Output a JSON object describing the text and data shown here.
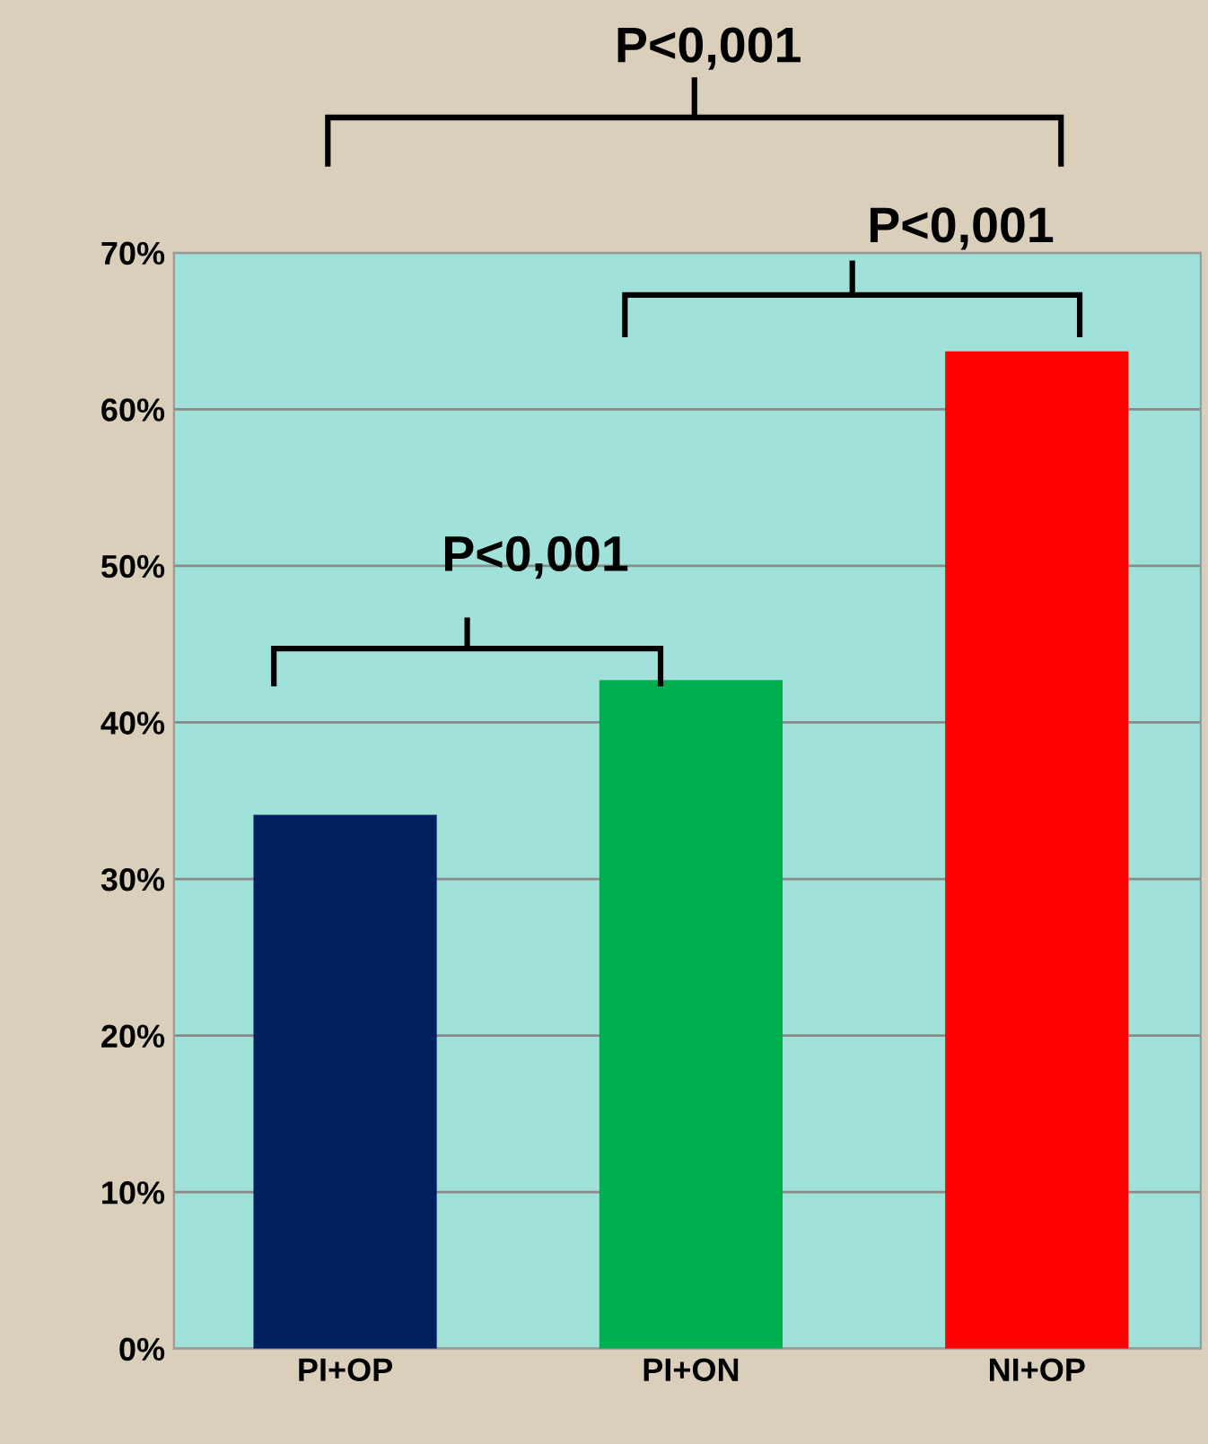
{
  "chart_data": {
    "type": "bar",
    "categories": [
      "PI+OP",
      "PI+ON",
      "NI+OP"
    ],
    "values": [
      34.1,
      42.7,
      63.7
    ],
    "colors": [
      "#002060",
      "#00b050",
      "#ff0000"
    ],
    "ylim": [
      0,
      70
    ],
    "yticks": [
      {
        "value": 0,
        "label": "0%"
      },
      {
        "value": 10,
        "label": "10%"
      },
      {
        "value": 20,
        "label": "20%"
      },
      {
        "value": 30,
        "label": "30%"
      },
      {
        "value": 40,
        "label": "40%"
      },
      {
        "value": 50,
        "label": "50%"
      },
      {
        "value": 60,
        "label": "60%"
      },
      {
        "value": 70,
        "label": "70%"
      }
    ],
    "grid": "y",
    "annotations": [
      "P<0,001",
      "P<0,001",
      "P<0,001"
    ]
  }
}
